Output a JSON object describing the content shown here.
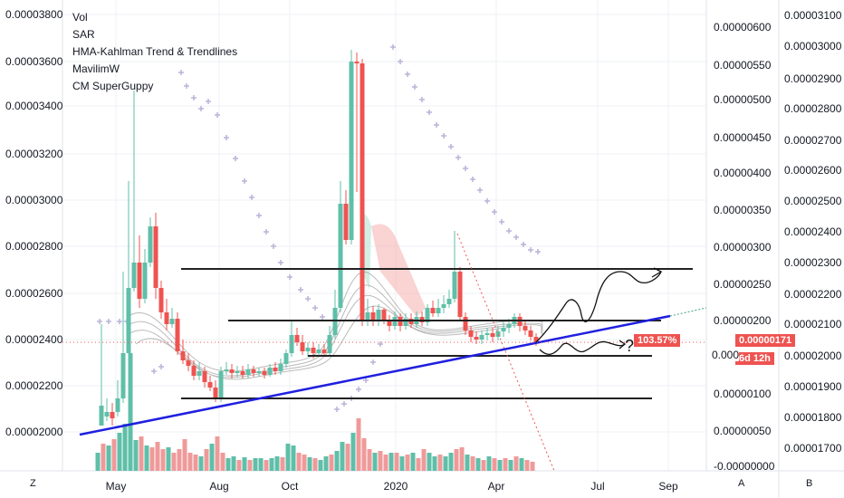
{
  "legend": [
    "Vol",
    "SAR",
    "HMA-Kahlman Trend & Trendlines",
    "MavilimW",
    "CM SuperGuppy"
  ],
  "left_axis_labels": [
    "0.00003800",
    "0.00003600",
    "0.00003400",
    "0.00003200",
    "0.00003000",
    "0.00002800",
    "0.00002600",
    "0.00002400",
    "0.00002200",
    "0.00002000"
  ],
  "mid_axis_labels": [
    "0.00000600",
    "0.00000550",
    "0.00000500",
    "0.00000450",
    "0.00000400",
    "0.00000350",
    "0.00000300",
    "0.00000250",
    "0.00000200",
    "0.00000100",
    "0.00000050",
    "-0.00000000"
  ],
  "right_axis_labels": [
    "0.00003100",
    "0.00003000",
    "0.00002900",
    "0.00002800",
    "0.00002700",
    "0.00002600",
    "0.00002500",
    "0.00002400",
    "0.00002300",
    "0.00002200",
    "0.00002100",
    "0.00002000",
    "0.00001900",
    "0.00001800",
    "0.00001700"
  ],
  "time_labels": [
    "May",
    "Aug",
    "Oct",
    "2020",
    "Apr",
    "Jul",
    "Sep"
  ],
  "percent_tag": "103.57%",
  "price_tag": "0.00000171",
  "countdown_tag": "6d 12h",
  "mid_tag_partial": "0.000",
  "question_mark": "?",
  "corner_left_btn": "Z",
  "corner_mid_btn": "A",
  "corner_right_btn": "B",
  "colors": {
    "up": "#5fbfa8",
    "down": "#ef5350",
    "trendline": "#1f1fe0",
    "sar": "#b8b3d9"
  }
}
